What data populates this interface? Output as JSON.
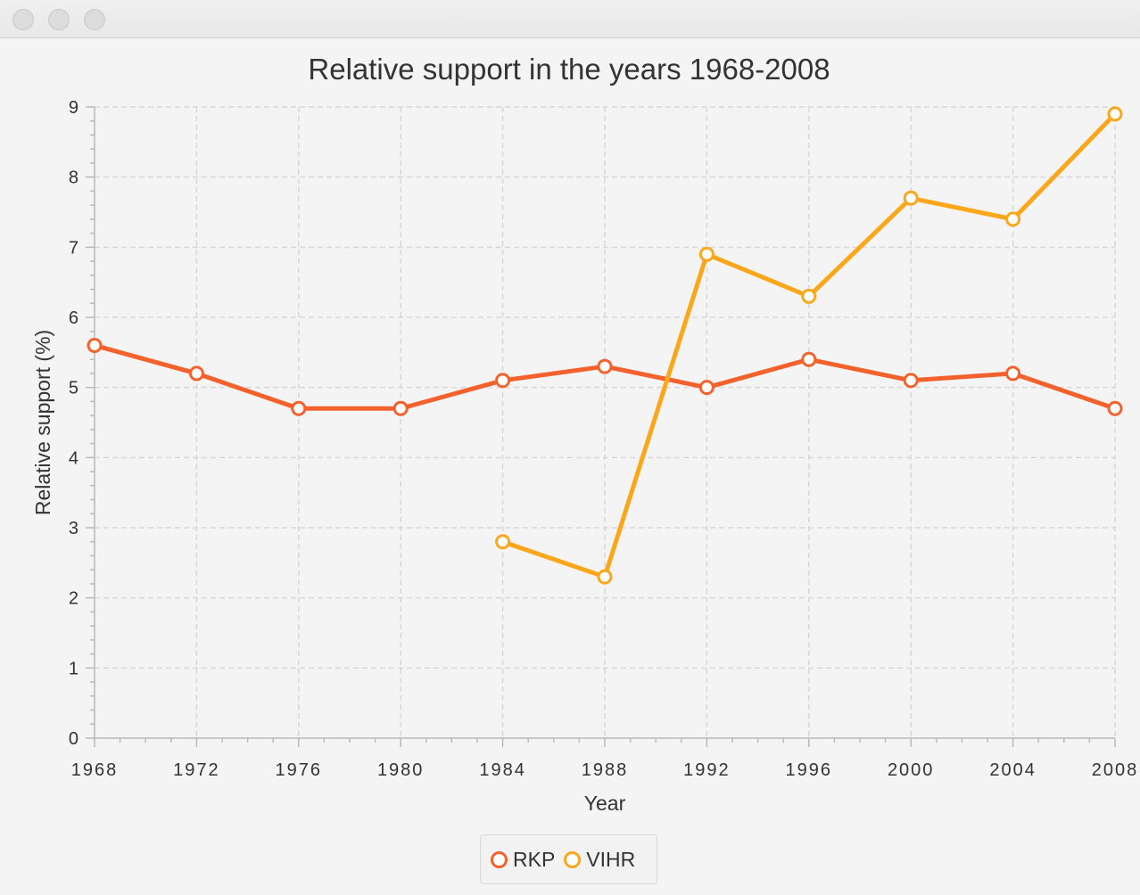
{
  "window": {
    "buttons": [
      "close",
      "minimize",
      "zoom"
    ]
  },
  "chart_data": {
    "type": "line",
    "title": "Relative support in the years 1968-2008",
    "xlabel": "Year",
    "ylabel": "Relative support (%)",
    "xlim": [
      1968,
      2008
    ],
    "ylim": [
      0,
      9
    ],
    "x_ticks": [
      1968,
      1972,
      1976,
      1980,
      1984,
      1988,
      1992,
      1996,
      2000,
      2004,
      2008
    ],
    "x_tick_labels": [
      "1968",
      "1972",
      "1976",
      "1980",
      "1984",
      "1988",
      "1992",
      "1996",
      "2000",
      "2004",
      "2008"
    ],
    "y_ticks": [
      0,
      1,
      2,
      3,
      4,
      5,
      6,
      7,
      8,
      9
    ],
    "grid": true,
    "legend_position": "bottom-center",
    "series": [
      {
        "name": "RKP",
        "color": "#f3622d",
        "points": [
          [
            1968,
            5.6
          ],
          [
            1972,
            5.2
          ],
          [
            1976,
            4.7
          ],
          [
            1980,
            4.7
          ],
          [
            1984,
            5.1
          ],
          [
            1988,
            5.3
          ],
          [
            1992,
            5.0
          ],
          [
            1996,
            5.4
          ],
          [
            2000,
            5.1
          ],
          [
            2004,
            5.2
          ],
          [
            2008,
            4.7
          ]
        ]
      },
      {
        "name": "VIHR",
        "color": "#fba71b",
        "points": [
          [
            1984,
            2.8
          ],
          [
            1988,
            2.3
          ],
          [
            1992,
            6.9
          ],
          [
            1996,
            6.3
          ],
          [
            2000,
            7.7
          ],
          [
            2004,
            7.4
          ],
          [
            2008,
            8.9
          ]
        ]
      }
    ]
  }
}
